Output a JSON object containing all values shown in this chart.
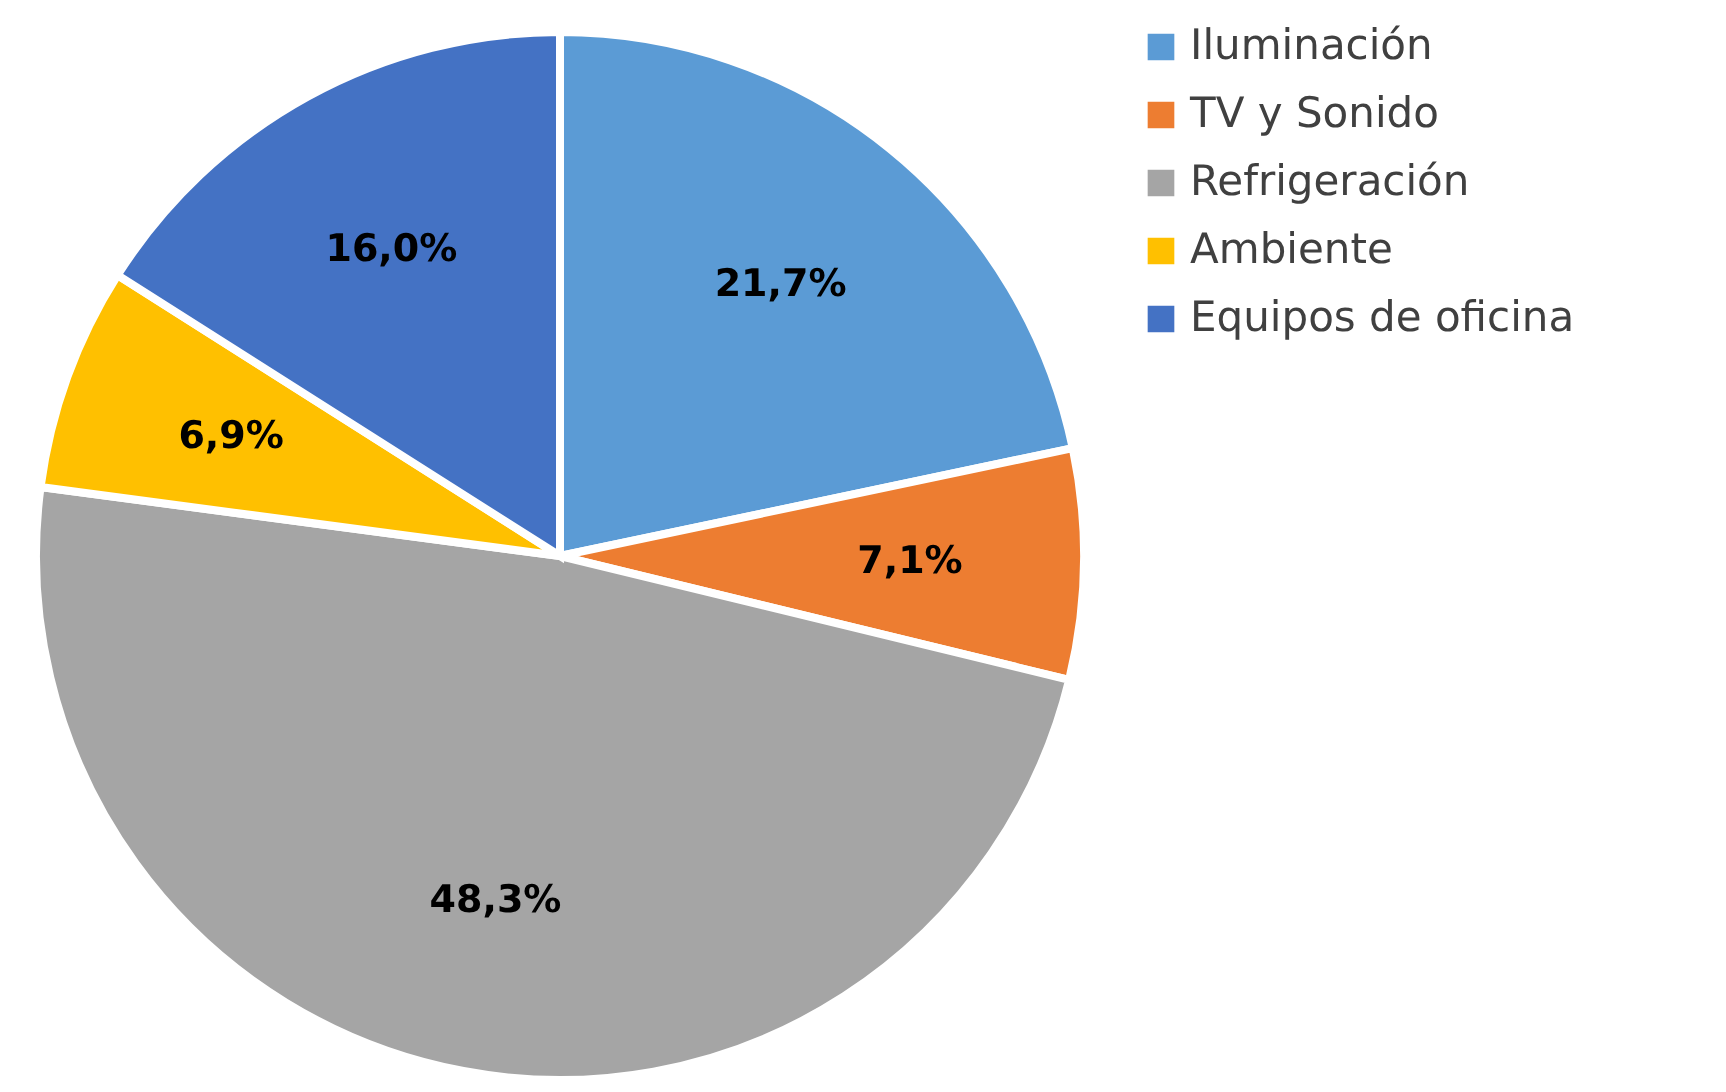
{
  "chart_data": {
    "type": "pie",
    "categories": [
      "Iluminación",
      "TV y Sonido",
      "Refrigeración",
      "Ambiente",
      "Equipos de oficina"
    ],
    "values": [
      21.7,
      7.1,
      48.3,
      6.9,
      16.0
    ],
    "colors": [
      "#5b9bd5",
      "#ed7d31",
      "#a5a5a5",
      "#ffc000",
      "#4472c4"
    ],
    "value_labels": [
      "21,7%",
      "7,1%",
      "48,3%",
      "6,9%",
      "16,0%"
    ],
    "legend": "right"
  }
}
